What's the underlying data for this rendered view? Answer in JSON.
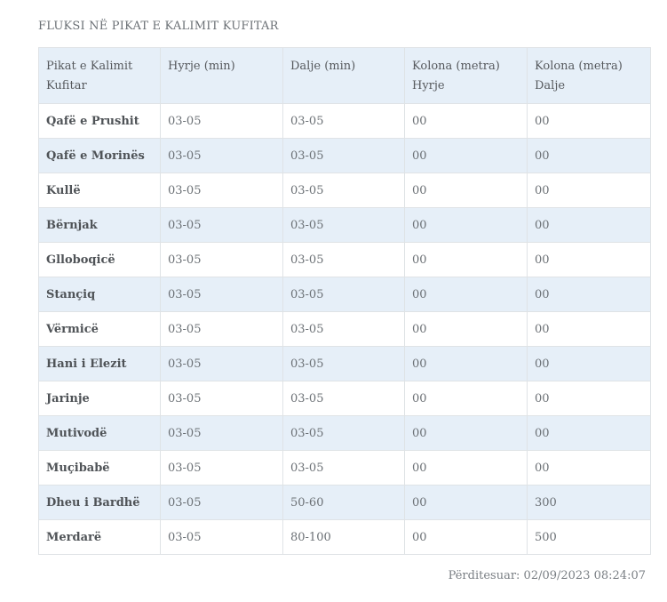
{
  "title": "FLUKSI NË PIKAT E KALIMIT KUFITAR",
  "table": {
    "headers": [
      "Pikat e Kalimit Kufitar",
      "Hyrje (min)",
      "Dalje (min)",
      "Kolona (metra) Hyrje",
      "Kolona (metra) Dalje"
    ],
    "rows": [
      {
        "name": "Qafë e Prushit",
        "hyrje": "03-05",
        "dalje": "03-05",
        "kolona_hyrje": "00",
        "kolona_dalje": "00"
      },
      {
        "name": "Qafë e Morinës",
        "hyrje": "03-05",
        "dalje": "03-05",
        "kolona_hyrje": "00",
        "kolona_dalje": "00"
      },
      {
        "name": "Kullë",
        "hyrje": "03-05",
        "dalje": "03-05",
        "kolona_hyrje": "00",
        "kolona_dalje": "00"
      },
      {
        "name": "Bërnjak",
        "hyrje": "03-05",
        "dalje": "03-05",
        "kolona_hyrje": "00",
        "kolona_dalje": "00"
      },
      {
        "name": "Glloboqicë",
        "hyrje": "03-05",
        "dalje": "03-05",
        "kolona_hyrje": "00",
        "kolona_dalje": "00"
      },
      {
        "name": "Stançiq",
        "hyrje": "03-05",
        "dalje": "03-05",
        "kolona_hyrje": "00",
        "kolona_dalje": "00"
      },
      {
        "name": "Vërmicë",
        "hyrje": "03-05",
        "dalje": "03-05",
        "kolona_hyrje": "00",
        "kolona_dalje": "00"
      },
      {
        "name": "Hani i Elezit",
        "hyrje": "03-05",
        "dalje": "03-05",
        "kolona_hyrje": "00",
        "kolona_dalje": "00"
      },
      {
        "name": "Jarinje",
        "hyrje": "03-05",
        "dalje": "03-05",
        "kolona_hyrje": "00",
        "kolona_dalje": "00"
      },
      {
        "name": "Mutivodë",
        "hyrje": "03-05",
        "dalje": "03-05",
        "kolona_hyrje": "00",
        "kolona_dalje": "00"
      },
      {
        "name": "Muçibabë",
        "hyrje": "03-05",
        "dalje": "03-05",
        "kolona_hyrje": "00",
        "kolona_dalje": "00"
      },
      {
        "name": "Dheu i Bardhë",
        "hyrje": "03-05",
        "dalje": "50-60",
        "kolona_hyrje": "00",
        "kolona_dalje": "300"
      },
      {
        "name": "Merdarë",
        "hyrje": "03-05",
        "dalje": "80-100",
        "kolona_hyrje": "00",
        "kolona_dalje": "500"
      }
    ]
  },
  "updated": "Përditesuar: 02/09/2023 08:24:07",
  "colors": {
    "header_bg": "#e6eff8",
    "stripe_bg": "#e6eff8",
    "border": "#dfe3e6"
  }
}
